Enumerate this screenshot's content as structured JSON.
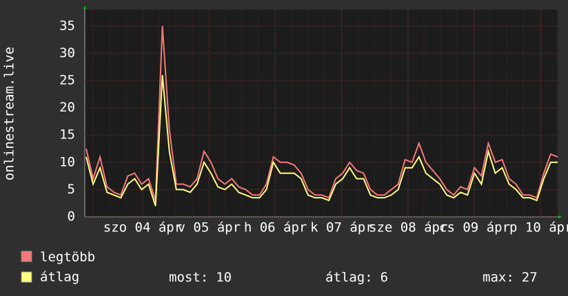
{
  "chart_data": {
    "type": "line",
    "y_label": "onlinestream.live",
    "ylim": [
      0,
      38
    ],
    "yticks": [
      0,
      5,
      10,
      15,
      20,
      25,
      30,
      35
    ],
    "grid": true,
    "xticks": [
      "szo 04 ápr",
      "v 05 ápr",
      "h 06 ápr",
      "k 07 ápr",
      "sze 08 ápr",
      "cs 09 ápr",
      "p 10 ápr"
    ],
    "series": [
      {
        "name": "legtöbb",
        "color": "#f87878",
        "values": [
          12.5,
          7,
          11,
          5.5,
          4.5,
          4,
          7.5,
          8,
          6,
          7,
          3,
          35,
          16,
          6,
          6,
          5.5,
          7,
          12,
          10,
          7,
          6,
          7,
          5.5,
          5,
          4,
          4,
          6,
          11,
          10,
          10,
          9.5,
          8,
          5,
          4,
          4,
          3.5,
          7,
          8,
          10,
          8.5,
          8,
          5,
          4,
          4,
          5,
          6,
          10.5,
          10,
          13.5,
          10,
          8.5,
          7,
          5,
          4,
          5.5,
          5,
          9,
          7.5,
          13.5,
          10,
          10.5,
          7,
          6,
          4,
          4,
          3.5,
          8,
          11.5,
          11
        ]
      },
      {
        "name": "átlag",
        "color": "#ffff80",
        "values": [
          11,
          6,
          9,
          4.5,
          4,
          3.5,
          6,
          7,
          5,
          6,
          2,
          26,
          12,
          5,
          5,
          4.5,
          6,
          10,
          8,
          5.5,
          5,
          6,
          4.5,
          4,
          3.5,
          3.5,
          5,
          10,
          8,
          8,
          8,
          7,
          4,
          3.5,
          3.5,
          3,
          6,
          7,
          9,
          7,
          7,
          4,
          3.5,
          3.5,
          4,
          5,
          9,
          9,
          11,
          8,
          7,
          6,
          4,
          3.5,
          4.5,
          4,
          8,
          6,
          12,
          8,
          9,
          6,
          5,
          3.5,
          3.5,
          3,
          7,
          10,
          10
        ]
      }
    ],
    "stats": [
      {
        "label": "most:",
        "value": 10
      },
      {
        "label": "átlag:",
        "value": 6
      },
      {
        "label": "max:",
        "value": 27
      }
    ]
  }
}
